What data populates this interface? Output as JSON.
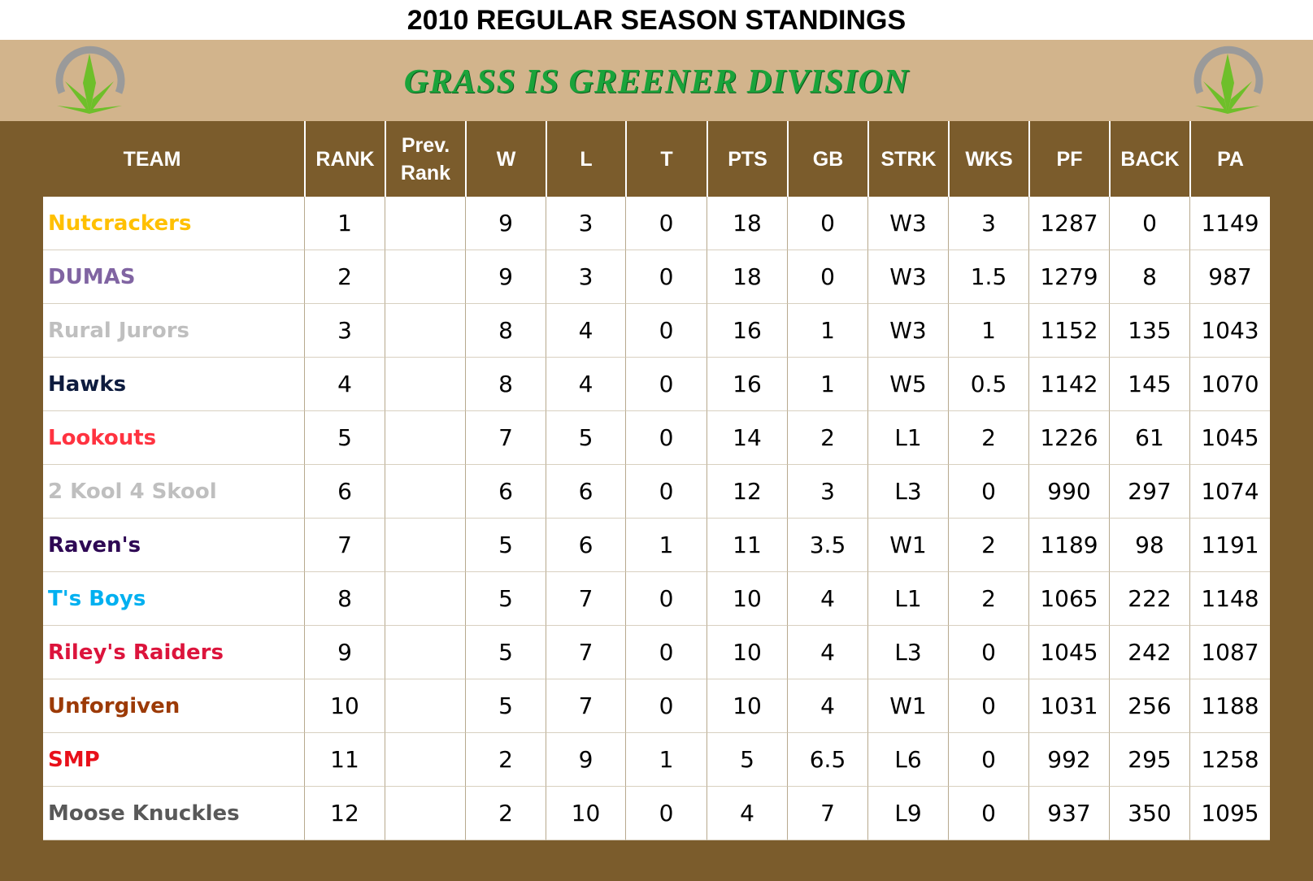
{
  "header": {
    "title": "2010 REGULAR SEASON STANDINGS",
    "division": "GRASS IS GREENER DIVISION"
  },
  "table": {
    "columns": [
      "TEAM",
      "RANK",
      "Prev. Rank",
      "W",
      "L",
      "T",
      "PTS",
      "GB",
      "STRK",
      "WKS",
      "PF",
      "BACK",
      "PA"
    ],
    "rows": [
      {
        "team": "Nutcrackers",
        "color": "#ffc000",
        "cells": [
          1,
          null,
          9,
          3,
          0,
          18,
          0,
          "W3",
          3,
          1287,
          0,
          1149
        ]
      },
      {
        "team": "DUMAS",
        "color": "#8064a2",
        "cells": [
          2,
          null,
          9,
          3,
          0,
          18,
          0,
          "W3",
          1.5,
          1279,
          8,
          987
        ]
      },
      {
        "team": "Rural Jurors",
        "color": "#bfbfbf",
        "cells": [
          3,
          null,
          8,
          4,
          0,
          16,
          1,
          "W3",
          1,
          1152,
          135,
          1043
        ]
      },
      {
        "team": "Hawks",
        "color": "#0d1b3e",
        "cells": [
          4,
          null,
          8,
          4,
          0,
          16,
          1,
          "W5",
          0.5,
          1142,
          145,
          1070
        ]
      },
      {
        "team": "Lookouts",
        "color": "#ff3340",
        "cells": [
          5,
          null,
          7,
          5,
          0,
          14,
          2,
          "L1",
          2,
          1226,
          61,
          1045
        ]
      },
      {
        "team": "2 Kool 4 Skool",
        "color": "#bfbfbf",
        "cells": [
          6,
          null,
          6,
          6,
          0,
          12,
          3,
          "L3",
          0,
          990,
          297,
          1074
        ]
      },
      {
        "team": "Raven's",
        "color": "#2e0854",
        "cells": [
          7,
          null,
          5,
          6,
          1,
          11,
          3.5,
          "W1",
          2,
          1189,
          98,
          1191
        ]
      },
      {
        "team": "T's Boys",
        "color": "#00b0f0",
        "cells": [
          8,
          null,
          5,
          7,
          0,
          10,
          4,
          "L1",
          2,
          1065,
          222,
          1148
        ]
      },
      {
        "team": "Riley's Raiders",
        "color": "#dc143c",
        "cells": [
          9,
          null,
          5,
          7,
          0,
          10,
          4,
          "L3",
          0,
          1045,
          242,
          1087
        ]
      },
      {
        "team": "Unforgiven",
        "color": "#9c3a06",
        "cells": [
          10,
          null,
          5,
          7,
          0,
          10,
          4,
          "W1",
          0,
          1031,
          256,
          1188
        ]
      },
      {
        "team": "SMP",
        "color": "#e8101a",
        "cells": [
          11,
          null,
          2,
          9,
          1,
          5,
          6.5,
          "L6",
          0,
          992,
          295,
          1258
        ]
      },
      {
        "team": "Moose Knuckles",
        "color": "#595959",
        "cells": [
          12,
          null,
          2,
          10,
          0,
          4,
          7,
          "L9",
          0,
          937,
          350,
          1095
        ]
      }
    ]
  }
}
